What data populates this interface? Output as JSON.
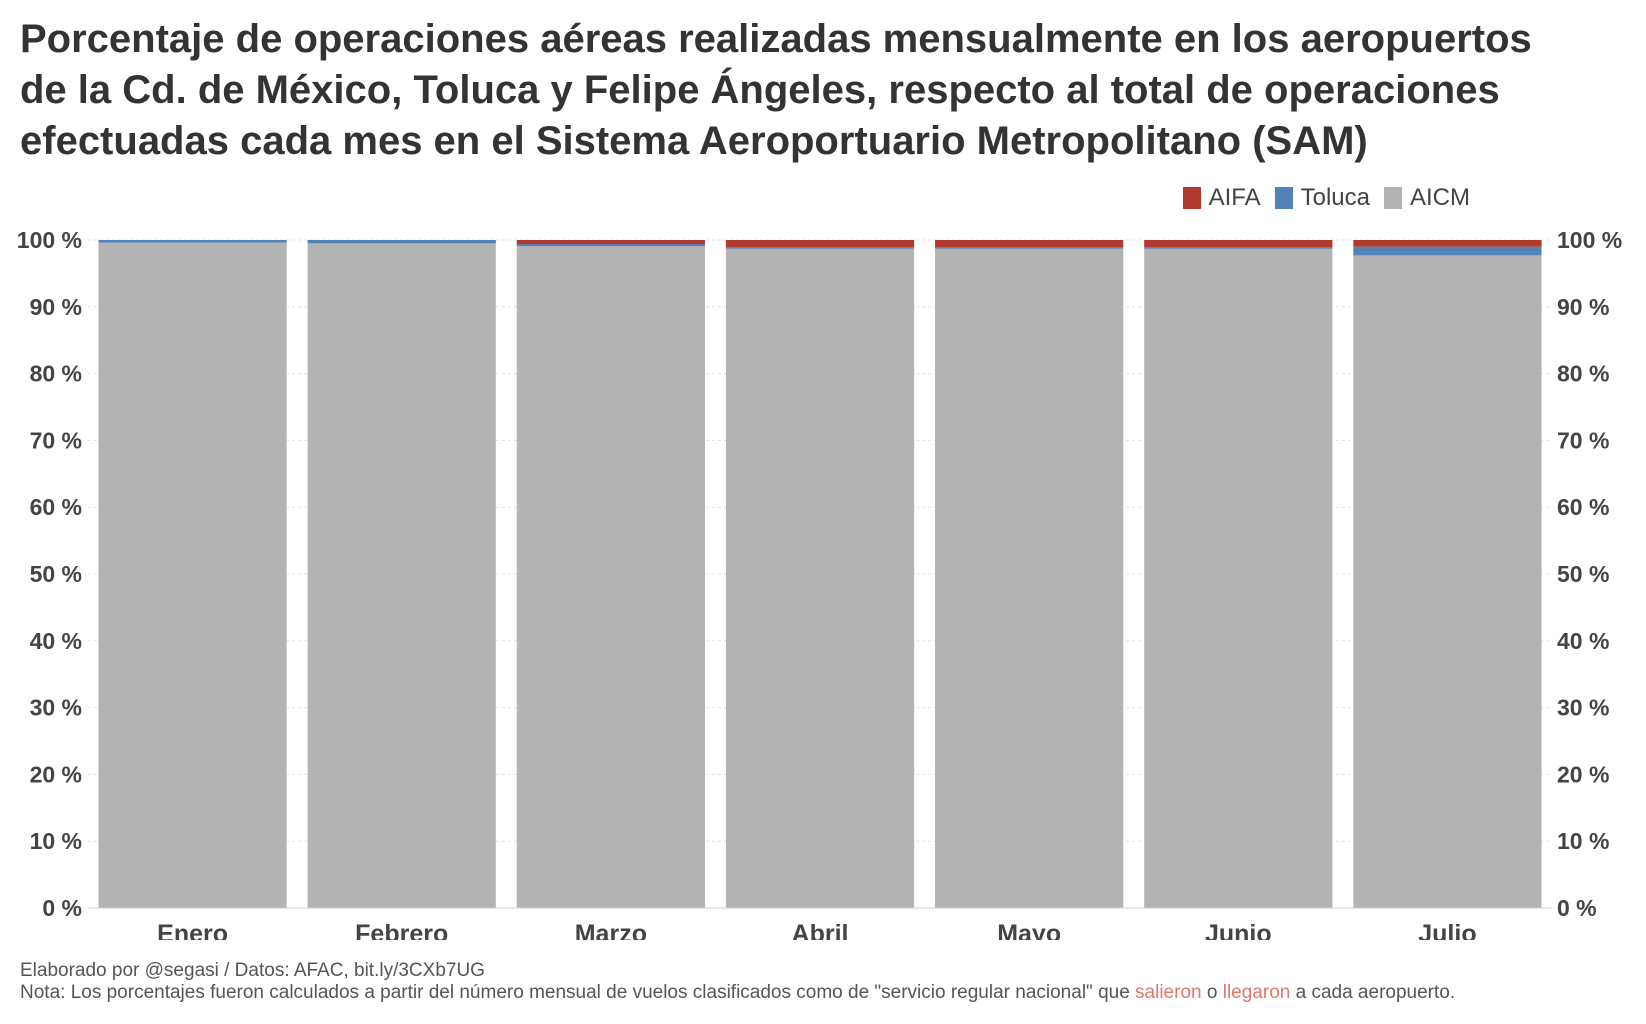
{
  "title_lines": [
    "Porcentaje de operaciones aéreas realizadas mensualmente en los aeropuertos",
    "de la Cd. de México, Toluca y Felipe Ángeles, respecto al total de operaciones",
    "efectuadas cada mes en el Sistema Aeroportuario Metropolitano (SAM)"
  ],
  "legend": [
    {
      "label": "AIFA",
      "color": "#b03a2e",
      "icon": "legend-swatch-square"
    },
    {
      "label": "Toluca",
      "color": "#5282b8",
      "icon": "legend-swatch-square"
    },
    {
      "label": "AICM",
      "color": "#b3b3b3",
      "icon": "legend-swatch-square"
    }
  ],
  "chart_data": {
    "type": "bar",
    "stacked": true,
    "categories": [
      "Enero",
      "Febrero",
      "Marzo",
      "Abril",
      "Mayo",
      "Junio",
      "Julio"
    ],
    "series": [
      {
        "name": "AICM",
        "color": "#b3b3b3",
        "values": [
          99.6,
          99.5,
          99.1,
          98.7,
          98.7,
          98.7,
          97.7
        ]
      },
      {
        "name": "Toluca",
        "color": "#5282b8",
        "values": [
          0.4,
          0.5,
          0.3,
          0.2,
          0.2,
          0.2,
          1.3
        ]
      },
      {
        "name": "AIFA",
        "color": "#b03a2e",
        "values": [
          0.0,
          0.0,
          0.6,
          1.1,
          1.1,
          1.1,
          1.0
        ]
      }
    ],
    "ylim": [
      0,
      100
    ],
    "y_ticks": [
      "0 %",
      "10 %",
      "20 %",
      "30 %",
      "40 %",
      "50 %",
      "60 %",
      "70 %",
      "80 %",
      "90 %",
      "100 %"
    ],
    "grid": true,
    "legend_position": "top-right"
  },
  "footer": {
    "credit": "Elaborado por @segasi / Datos: AFAC, bit.ly/3CXb7UG",
    "note_part1": "Nota: Los porcentajes fueron calculados a partir del número mensual de vuelos clasificados como de \"servicio regular nacional\" que ",
    "note_salieron": "salieron",
    "note_o": " o ",
    "note_llegaron": "llegaron",
    "note_part2": " a cada aeropuerto.",
    "highlight_color": "#e2776d"
  }
}
